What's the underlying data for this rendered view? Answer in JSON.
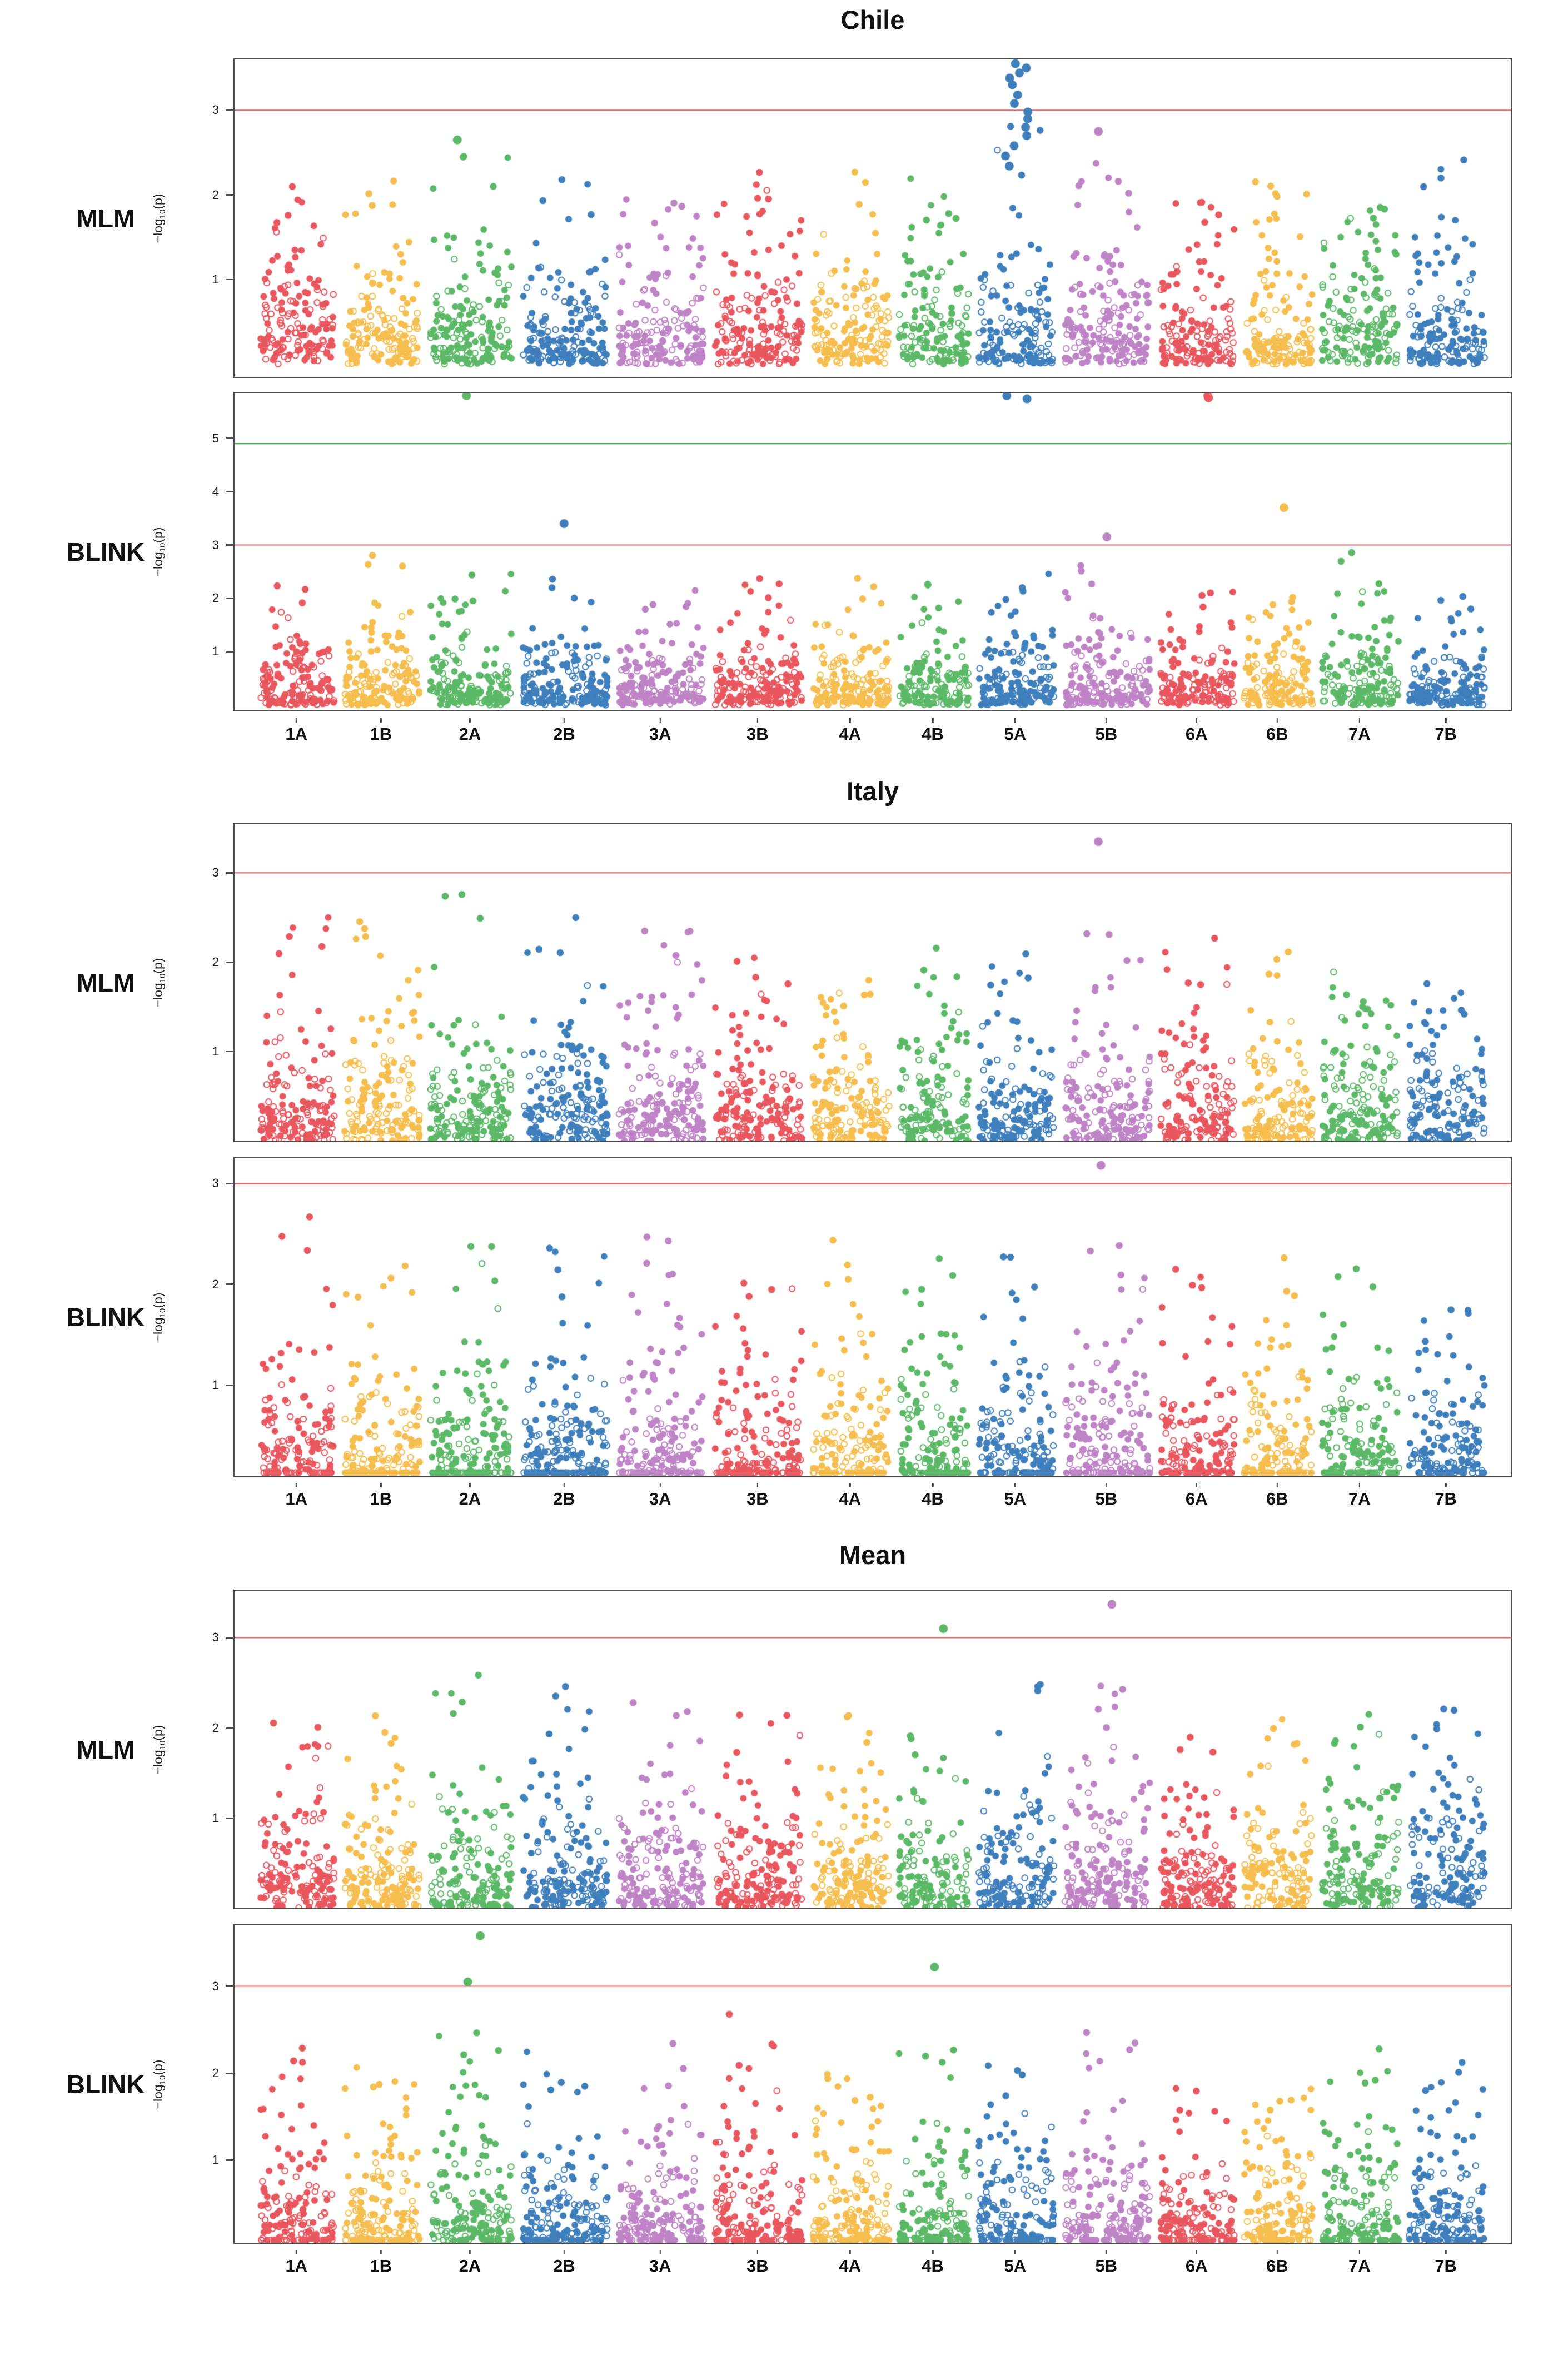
{
  "figure": {
    "ylabel_prefix": "−log",
    "ylabel_sub": "10",
    "ylabel_suffix": "(p)"
  },
  "chart_data": {
    "type": "scatter",
    "subtype": "manhattan",
    "x_categories": [
      "1A",
      "1B",
      "2A",
      "2B",
      "3A",
      "3B",
      "4A",
      "4B",
      "5A",
      "5B",
      "6A",
      "6B",
      "7A",
      "7B"
    ],
    "band_widths_rel": [
      0.95,
      0.97,
      1.05,
      1.09,
      1.09,
      1.12,
      0.98,
      0.9,
      0.97,
      1.1,
      0.95,
      0.88,
      0.99,
      0.97
    ],
    "palette": [
      "#E9575F",
      "#F6BE4F",
      "#5CB968",
      "#3F7FBC",
      "#BE84C6"
    ],
    "ylabel": "-log10(p)",
    "points_per_unit_width": 160,
    "point_y_scale": 1.05,
    "threshold_red": "#DE5F5F",
    "threshold_green": "#3FA54C",
    "sections": [
      {
        "title": "Chile",
        "panels": [
          {
            "label": "MLM",
            "seed": 101,
            "ylim": [
              -0.15,
              3.6
            ],
            "yticks": [
              1,
              2,
              3
            ],
            "thresholds": [
              {
                "value": 3,
                "color": "#DE5F5F"
              }
            ],
            "chrom_max": [
              2.15,
              2.35,
              2.7,
              2.3,
              2.2,
              2.35,
              2.3,
              2.2,
              2.95,
              2.6,
              2.15,
              2.45,
              2.0,
              2.45
            ],
            "outliers": [
              {
                "chrom": 8,
                "values": [
                  3.55,
                  3.5,
                  3.44,
                  3.38,
                  3.3,
                  3.18,
                  3.08,
                  2.98,
                  2.9,
                  2.8,
                  2.7,
                  2.58,
                  2.46,
                  2.34
                ]
              },
              {
                "chrom": 9,
                "values": [
                  2.75
                ]
              },
              {
                "chrom": 2,
                "values": [
                  2.65
                ]
              }
            ]
          },
          {
            "label": "BLINK",
            "seed": 102,
            "ylim": [
              -0.1,
              5.85
            ],
            "yticks": [
              1,
              2,
              3,
              4,
              5
            ],
            "thresholds": [
              {
                "value": 4.9,
                "color": "#3FA54C"
              },
              {
                "value": 3,
                "color": "#DE5F5F"
              }
            ],
            "chrom_max": [
              2.4,
              2.95,
              2.6,
              2.4,
              2.3,
              2.4,
              2.5,
              2.4,
              2.6,
              2.8,
              2.2,
              2.4,
              2.95,
              2.2
            ],
            "outliers": [
              {
                "chrom": 2,
                "values": [
                  5.8
                ]
              },
              {
                "chrom": 3,
                "values": [
                  3.4
                ]
              },
              {
                "chrom": 8,
                "values": [
                  5.8,
                  5.74
                ]
              },
              {
                "chrom": 9,
                "values": [
                  3.15
                ]
              },
              {
                "chrom": 10,
                "values": [
                  5.8,
                  5.76
                ]
              },
              {
                "chrom": 11,
                "values": [
                  3.7
                ]
              }
            ]
          }
        ]
      },
      {
        "title": "Italy",
        "panels": [
          {
            "label": "MLM",
            "seed": 103,
            "ylim": [
              0,
              3.55
            ],
            "yticks": [
              1,
              2,
              3
            ],
            "thresholds": [
              {
                "value": 3,
                "color": "#DE5F5F"
              }
            ],
            "chrom_max": [
              2.65,
              2.9,
              2.8,
              2.55,
              2.5,
              2.05,
              2.0,
              2.2,
              2.2,
              2.5,
              2.3,
              2.2,
              1.9,
              1.85
            ],
            "outliers": [
              {
                "chrom": 9,
                "values": [
                  3.35
                ]
              }
            ]
          },
          {
            "label": "BLINK",
            "seed": 104,
            "ylim": [
              0.1,
              3.25
            ],
            "yticks": [
              1,
              2,
              3
            ],
            "thresholds": [
              {
                "value": 3,
                "color": "#DE5F5F"
              }
            ],
            "chrom_max": [
              2.75,
              2.3,
              2.55,
              2.5,
              2.55,
              2.2,
              2.6,
              2.3,
              2.3,
              2.55,
              2.2,
              2.45,
              2.2,
              1.9
            ],
            "outliers": [
              {
                "chrom": 9,
                "values": [
                  3.18
                ]
              }
            ]
          }
        ]
      },
      {
        "title": "Mean",
        "panels": [
          {
            "label": "MLM",
            "seed": 105,
            "ylim": [
              0,
              3.52
            ],
            "yticks": [
              1,
              2,
              3
            ],
            "thresholds": [
              {
                "value": 3,
                "color": "#DE5F5F"
              }
            ],
            "chrom_max": [
              2.1,
              2.2,
              2.75,
              2.5,
              2.35,
              2.2,
              2.3,
              2.1,
              2.75,
              2.6,
              2.1,
              2.2,
              2.25,
              2.25
            ],
            "outliers": [
              {
                "chrom": 7,
                "values": [
                  3.1
                ]
              },
              {
                "chrom": 9,
                "values": [
                  3.37
                ]
              }
            ]
          },
          {
            "label": "BLINK",
            "seed": 106,
            "ylim": [
              0.05,
              3.7
            ],
            "yticks": [
              1,
              2,
              3
            ],
            "thresholds": [
              {
                "value": 3,
                "color": "#DE5F5F"
              }
            ],
            "chrom_max": [
              2.35,
              2.1,
              2.6,
              2.3,
              2.45,
              2.78,
              2.0,
              2.4,
              2.2,
              2.6,
              1.9,
              2.1,
              2.5,
              2.3
            ],
            "outliers": [
              {
                "chrom": 2,
                "values": [
                  3.58,
                  3.05
                ]
              },
              {
                "chrom": 7,
                "values": [
                  3.22
                ]
              }
            ]
          }
        ]
      }
    ]
  }
}
